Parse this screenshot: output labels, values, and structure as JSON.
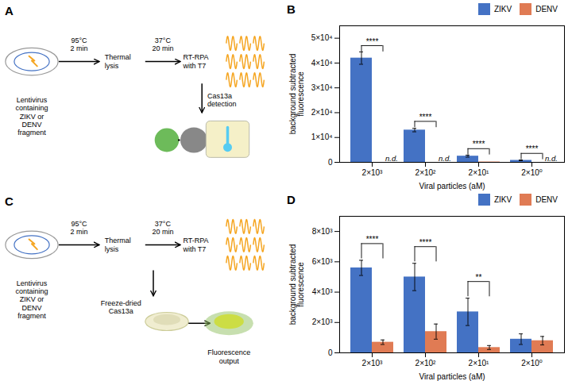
{
  "chart_data": [
    {
      "type": "diagram",
      "title": "A",
      "annotations": [
        "Lentivirus\ncontaining\nZIKV or\nDENV\nfragment",
        "95°C\n2 min",
        "Thermal\nlysis",
        "37°C\n20 min",
        "RT-RPA\nwith T7",
        "Cas13a\ndetection"
      ]
    },
    {
      "type": "bar",
      "title": "B",
      "categories": [
        "2×10³",
        "2×10²",
        "2×10¹",
        "2×10⁰"
      ],
      "series": [
        {
          "name": "ZIKV",
          "color": "#4472C4",
          "values": [
            42000,
            13000,
            2500,
            800
          ],
          "errors": [
            2500,
            700,
            400,
            150
          ]
        },
        {
          "name": "DENV",
          "color": "#E07B54",
          "values": [
            0,
            0,
            150,
            0
          ]
        }
      ],
      "xlabel": "Viral particles (aM)",
      "ylabel": "background subtracted\nfluorescence",
      "ylim": [
        0,
        55000
      ],
      "yticks": [
        0,
        {
          "value": 10000,
          "label": "1×10⁴"
        },
        {
          "value": 20000,
          "label": "2×10⁴"
        },
        {
          "value": 30000,
          "label": "3×10⁴"
        },
        {
          "value": 40000,
          "label": "4×10⁴"
        },
        {
          "value": 50000,
          "label": "5×10⁴"
        }
      ],
      "legend": "upper right",
      "annotations": [
        {
          "text": "n.d.",
          "x": "2×10³",
          "series": "DENV",
          "y": 400
        },
        {
          "text": "n.d.",
          "x": "2×10²",
          "series": "DENV",
          "y": 400
        },
        {
          "text": "n.d.",
          "x": "2×10⁰",
          "series": "DENV",
          "y": 400
        }
      ],
      "significance": [
        {
          "x": "2×10³",
          "label": "****",
          "y1": 44500,
          "y2": 47000
        },
        {
          "x": "2×10²",
          "label": "****",
          "y1": 14000,
          "y2": 16500
        },
        {
          "x": "2×10¹",
          "label": "****",
          "y1": 3000,
          "y2": 5500
        },
        {
          "x": "2×10⁰",
          "label": "****",
          "y1": 1100,
          "y2": 3600
        }
      ]
    },
    {
      "type": "diagram",
      "title": "C",
      "annotations": [
        "Lentivirus\ncontaining\nZIKV or\nDENV\nfragment",
        "95°C\n2 min",
        "Thermal\nlysis",
        "37°C\n20 min",
        "RT-RPA\nwith T7",
        "Freeze-dried\nCas13a",
        "Fluorescence\noutput"
      ]
    },
    {
      "type": "bar",
      "title": "D",
      "categories": [
        "2×10³",
        "2×10²",
        "2×10¹",
        "2×10⁰"
      ],
      "series": [
        {
          "name": "ZIKV",
          "color": "#4472C4",
          "values": [
            5600,
            5000,
            2700,
            900
          ],
          "errors": [
            500,
            900,
            900,
            350
          ]
        },
        {
          "name": "DENV",
          "color": "#E07B54",
          "values": [
            700,
            1400,
            350,
            800
          ],
          "errors": [
            150,
            500,
            130,
            280
          ]
        }
      ],
      "xlabel": "Viral particles (aM)",
      "ylabel": "background subtracted\nfluorescence",
      "ylim": [
        0,
        9000
      ],
      "yticks": [
        0,
        {
          "value": 2000,
          "label": "2×10³"
        },
        {
          "value": 4000,
          "label": "4×10³"
        },
        {
          "value": 6000,
          "label": "6×10³"
        },
        {
          "value": 8000,
          "label": "8×10³"
        }
      ],
      "legend": "upper right",
      "significance": [
        {
          "x": "2×10³",
          "label": "****",
          "y1": 6200,
          "y2": 7200
        },
        {
          "x": "2×10²",
          "label": "****",
          "y1": 6000,
          "y2": 7000
        },
        {
          "x": "2×10¹",
          "label": "**",
          "y1": 3700,
          "y2": 4700
        }
      ]
    }
  ]
}
